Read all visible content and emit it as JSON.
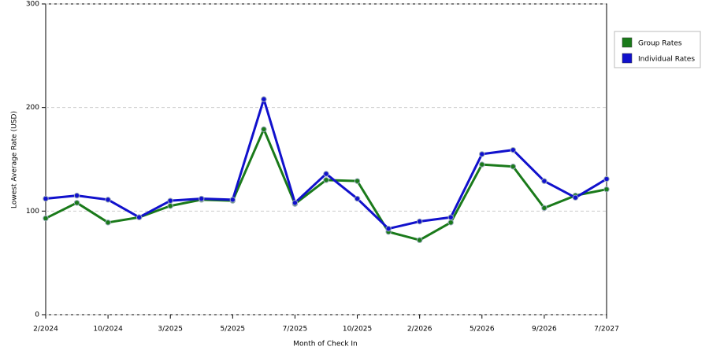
{
  "chart_data": {
    "type": "line",
    "x_label": "Month of Check In",
    "y_label": "Lowest Average Rate (USD)",
    "categories": [
      "2/2024",
      null,
      "10/2024",
      null,
      "3/2025",
      null,
      "5/2025",
      null,
      "7/2025",
      null,
      "10/2025",
      null,
      "2/2026",
      null,
      "5/2026",
      null,
      "9/2026",
      null,
      "7/2027"
    ],
    "series": [
      {
        "name": "Group Rates",
        "color": "#1a7a1a",
        "values": [
          93,
          108,
          89,
          94,
          105,
          111,
          110,
          179,
          107,
          130,
          129,
          80,
          72,
          89,
          145,
          143,
          103,
          115,
          121
        ]
      },
      {
        "name": "Individual Rates",
        "color": "#1111cc",
        "values": [
          112,
          115,
          111,
          94,
          110,
          112,
          111,
          208,
          108,
          136,
          112,
          83,
          90,
          94,
          155,
          159,
          129,
          113,
          131
        ]
      }
    ],
    "ylim": [
      0,
      300
    ],
    "yticks": [
      0,
      100,
      200,
      300
    ],
    "grid": true,
    "legend": "right"
  }
}
